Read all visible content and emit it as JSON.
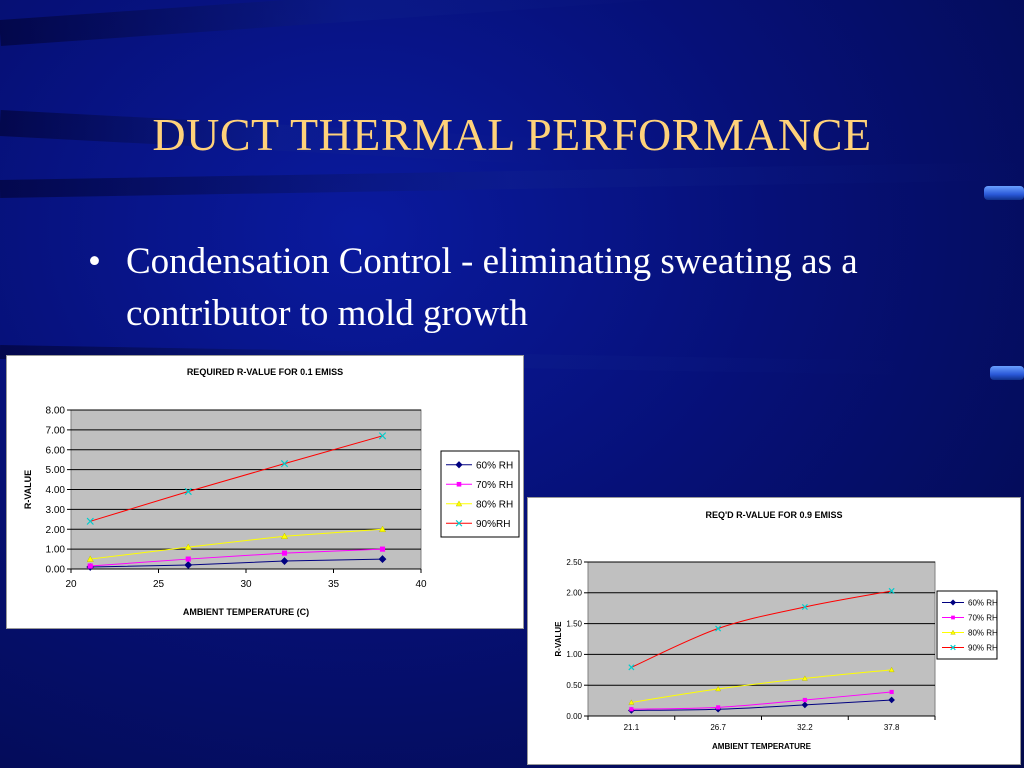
{
  "slide": {
    "title": "DUCT THERMAL PERFORMANCE",
    "bullet": "Condensation Control - eliminating sweating as a contributor to mold growth",
    "bullet_symbol": "•",
    "colors": {
      "title": "#ffd27a",
      "text": "#ffffff",
      "background": "#061077"
    }
  },
  "chart_data": [
    {
      "type": "line",
      "title": "REQUIRED R-VALUE FOR 0.1 EMISS",
      "xlabel": "AMBIENT TEMPERATURE (C)",
      "ylabel": "R-VALUE",
      "xlim": [
        20,
        40
      ],
      "ylim": [
        0,
        8
      ],
      "xticks": [
        "20",
        "25",
        "30",
        "35",
        "40"
      ],
      "yticks": [
        "0.00",
        "1.00",
        "2.00",
        "3.00",
        "4.00",
        "5.00",
        "6.00",
        "7.00",
        "8.00"
      ],
      "grid": true,
      "legend_position": "right",
      "x": [
        21.1,
        26.7,
        32.2,
        37.8
      ],
      "series": [
        {
          "name": "60% RH",
          "values": [
            0.1,
            0.2,
            0.4,
            0.5
          ],
          "color": "#000080",
          "marker": "diamond"
        },
        {
          "name": "70% RH",
          "values": [
            0.15,
            0.5,
            0.8,
            1.0
          ],
          "color": "#ff00ff",
          "marker": "square"
        },
        {
          "name": "80% RH",
          "values": [
            0.5,
            1.1,
            1.65,
            2.0
          ],
          "color": "#ffff00",
          "marker": "triangle"
        },
        {
          "name": "90%RH",
          "values": [
            2.4,
            3.9,
            5.3,
            6.7
          ],
          "color": "#ff0000",
          "marker_color": "#00cccc",
          "marker": "x"
        }
      ]
    },
    {
      "type": "line",
      "title": "REQ'D R-VALUE FOR 0.9 EMISS",
      "xlabel": "AMBIENT TEMPERATURE",
      "ylabel": "R-VALUE",
      "categories": [
        "21.1",
        "26.7",
        "32.2",
        "37.8"
      ],
      "ylim": [
        0,
        2.5
      ],
      "yticks": [
        "0.00",
        "0.50",
        "1.00",
        "1.50",
        "2.00",
        "2.50"
      ],
      "grid": true,
      "legend_position": "right",
      "series": [
        {
          "name": "60% RH",
          "values": [
            0.09,
            0.11,
            0.18,
            0.26
          ],
          "color": "#000080",
          "marker": "diamond"
        },
        {
          "name": "70% RH",
          "values": [
            0.11,
            0.14,
            0.26,
            0.39
          ],
          "color": "#ff00ff",
          "marker": "square"
        },
        {
          "name": "80% RH",
          "values": [
            0.22,
            0.44,
            0.61,
            0.75
          ],
          "color": "#ffff00",
          "marker": "triangle"
        },
        {
          "name": "90% RH",
          "values": [
            0.79,
            1.42,
            1.77,
            2.03
          ],
          "color": "#ff0000",
          "marker_color": "#00cccc",
          "marker": "x"
        }
      ]
    }
  ]
}
